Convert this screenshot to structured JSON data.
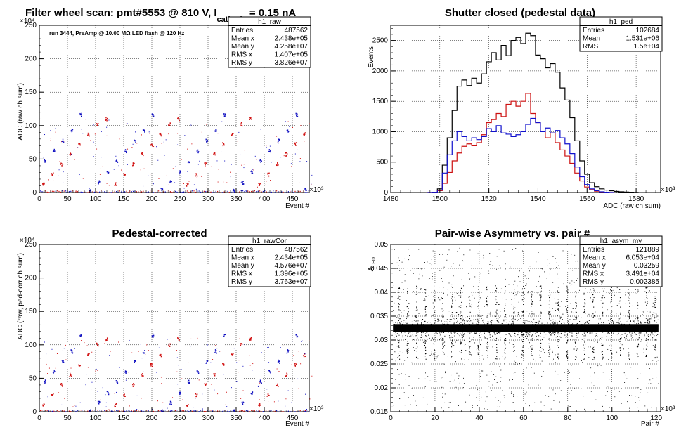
{
  "chart_data": [
    {
      "id": "p1",
      "type": "scatter",
      "title": "Filter wheel scan: pmt#5553 @   810 V, I",
      "title_sub": "cathode",
      "title_tail": " = 0.15 nA",
      "annotation": "run 3444, PreAmp @ 10.00 MΩ LED flash @  120 Hz",
      "xlabel": "Event #",
      "ylabel": "ADC (raw ch sum)",
      "xlim": [
        0,
        480000
      ],
      "ylim": [
        0,
        2500000
      ],
      "x_exponent": "×10³",
      "y_exponent": "×10⁴",
      "xticks": [
        "0",
        "50",
        "100",
        "150",
        "200",
        "250",
        "300",
        "350",
        "400",
        "450"
      ],
      "yticks": [
        "0",
        "50",
        "100",
        "150",
        "200",
        "250"
      ],
      "grid": true,
      "stats": {
        "name": "h1_raw",
        "rows": [
          {
            "k": "Entries",
            "v": "487562"
          },
          {
            "k": "Mean x",
            "v": "2.438e+05"
          },
          {
            "k": "Mean y",
            "v": "4.258e+07"
          },
          {
            "k": "RMS x",
            "v": "1.407e+05"
          },
          {
            "k": "RMS y",
            "v": "3.826e+07"
          }
        ]
      },
      "series": [
        {
          "color": "#d01010",
          "levels": [
            12,
            27,
            42,
            57,
            72,
            87,
            102,
            110
          ]
        },
        {
          "color": "#1010c0",
          "levels": [
            4,
            15,
            30,
            47,
            62,
            77,
            92,
            116
          ]
        }
      ],
      "block_period": 16000
    },
    {
      "id": "p2",
      "type": "line",
      "title": "Shutter closed (pedestal data)",
      "xlabel": "ADC (raw ch sum)",
      "ylabel": "Events",
      "xlim": [
        1480,
        1590
      ],
      "ylim": [
        0,
        2750
      ],
      "x_exponent": "×10³",
      "xticks": [
        "1480",
        "1500",
        "1520",
        "1540",
        "1560",
        "1580"
      ],
      "yticks": [
        "0",
        "500",
        "1000",
        "1500",
        "2000",
        "2500"
      ],
      "grid": true,
      "stats": {
        "name": "h1_ped",
        "rows": [
          {
            "k": "Entries",
            "v": "102684"
          },
          {
            "k": "Mean",
            "v": "1.531e+06"
          },
          {
            "k": "RMS",
            "v": "1.5e+04"
          }
        ]
      },
      "series": [
        {
          "color": "#000000",
          "x": [
            1496,
            1498,
            1500,
            1502,
            1504,
            1506,
            1508,
            1510,
            1512,
            1514,
            1516,
            1518,
            1520,
            1522,
            1524,
            1526,
            1528,
            1530,
            1532,
            1534,
            1536,
            1538,
            1540,
            1542,
            1544,
            1546,
            1548,
            1550,
            1552,
            1554,
            1556,
            1558,
            1560,
            1562,
            1564,
            1566,
            1568,
            1570,
            1572,
            1574,
            1576,
            1578,
            1580
          ],
          "y": [
            0,
            5,
            60,
            450,
            900,
            1350,
            1750,
            1850,
            1760,
            1880,
            1800,
            1950,
            2150,
            2300,
            2180,
            2420,
            2250,
            2500,
            2550,
            2450,
            2620,
            2580,
            2260,
            2200,
            2050,
            2120,
            1980,
            1720,
            1520,
            1230,
            850,
            520,
            300,
            160,
            95,
            60,
            40,
            28,
            18,
            12,
            8,
            5,
            2
          ]
        },
        {
          "color": "#cc1010",
          "x": [
            1496,
            1498,
            1500,
            1502,
            1504,
            1506,
            1508,
            1510,
            1512,
            1514,
            1516,
            1518,
            1520,
            1522,
            1524,
            1526,
            1528,
            1530,
            1532,
            1534,
            1536,
            1538,
            1540,
            1542,
            1544,
            1546,
            1548,
            1550,
            1552,
            1554,
            1556,
            1558,
            1560,
            1562,
            1564,
            1566,
            1568,
            1570
          ],
          "y": [
            0,
            2,
            30,
            150,
            330,
            520,
            650,
            760,
            800,
            770,
            820,
            950,
            1150,
            1200,
            1300,
            1250,
            1450,
            1500,
            1420,
            1500,
            1630,
            1300,
            1150,
            1000,
            900,
            980,
            820,
            700,
            600,
            480,
            320,
            190,
            90,
            45,
            22,
            10,
            5,
            0
          ]
        },
        {
          "color": "#1010cc",
          "x": [
            1496,
            1498,
            1500,
            1502,
            1504,
            1506,
            1508,
            1510,
            1512,
            1514,
            1516,
            1518,
            1520,
            1522,
            1524,
            1526,
            1528,
            1530,
            1532,
            1534,
            1536,
            1538,
            1540,
            1542,
            1544,
            1546,
            1548,
            1550,
            1552,
            1554,
            1556,
            1558,
            1560,
            1562,
            1564,
            1566,
            1568,
            1570
          ],
          "y": [
            0,
            3,
            40,
            320,
            620,
            850,
            1000,
            920,
            850,
            900,
            870,
            920,
            1050,
            1000,
            1100,
            980,
            960,
            920,
            950,
            1000,
            1120,
            1220,
            1150,
            1000,
            1060,
            980,
            1020,
            900,
            800,
            640,
            420,
            260,
            130,
            60,
            30,
            12,
            5,
            0
          ]
        }
      ]
    },
    {
      "id": "p3",
      "type": "scatter",
      "title": "Pedestal-corrected",
      "xlabel": "Event #",
      "ylabel": "ADC (raw, ped-corr ch sum)",
      "xlim": [
        0,
        480000
      ],
      "ylim": [
        0,
        2500000
      ],
      "x_exponent": "×10³",
      "y_exponent": "×10⁴",
      "xticks": [
        "0",
        "50",
        "100",
        "150",
        "200",
        "250",
        "300",
        "350",
        "400",
        "450"
      ],
      "yticks": [
        "0",
        "50",
        "100",
        "150",
        "200",
        "250"
      ],
      "grid": true,
      "stats": {
        "name": "h1_rawCor",
        "rows": [
          {
            "k": "Entries",
            "v": "487562"
          },
          {
            "k": "Mean x",
            "v": "2.434e+05"
          },
          {
            "k": "Mean y",
            "v": "4.576e+07"
          },
          {
            "k": "RMS x",
            "v": "1.396e+05"
          },
          {
            "k": "RMS y",
            "v": "3.763e+07"
          }
        ]
      },
      "series": [
        {
          "color": "#d01010",
          "levels": [
            10,
            25,
            40,
            55,
            70,
            85,
            100,
            108
          ]
        },
        {
          "color": "#1010c0",
          "levels": [
            2,
            13,
            28,
            45,
            60,
            75,
            90,
            114
          ]
        }
      ],
      "block_period": 16000
    },
    {
      "id": "p4",
      "type": "scatter",
      "title": "Pair-wise Asymmetry vs. pair #",
      "xlabel": "Pair #",
      "ylabel": "A",
      "ylabel_sub": "LED",
      "xlim": [
        0,
        122000
      ],
      "ylim": [
        0.015,
        0.05
      ],
      "x_exponent": "×10³",
      "xticks": [
        "0",
        "20",
        "40",
        "60",
        "80",
        "100",
        "120"
      ],
      "yticks": [
        "0.015",
        "0.02",
        "0.025",
        "0.03",
        "0.035",
        "0.04",
        "0.045",
        "0.05"
      ],
      "grid": true,
      "stats": {
        "name": "h1_asym_my",
        "rows": [
          {
            "k": "Entries",
            "v": "121889"
          },
          {
            "k": "Mean x",
            "v": "6.053e+04"
          },
          {
            "k": "Mean y",
            "v": "0.03259"
          },
          {
            "k": "RMS x",
            "v": "3.491e+04"
          },
          {
            "k": "RMS y",
            "v": "0.002385"
          }
        ]
      },
      "band_center": 0.0325,
      "band_halfwidth": 0.0012,
      "spike_period": 4000,
      "series": [
        {
          "color": "#000000"
        }
      ]
    }
  ]
}
